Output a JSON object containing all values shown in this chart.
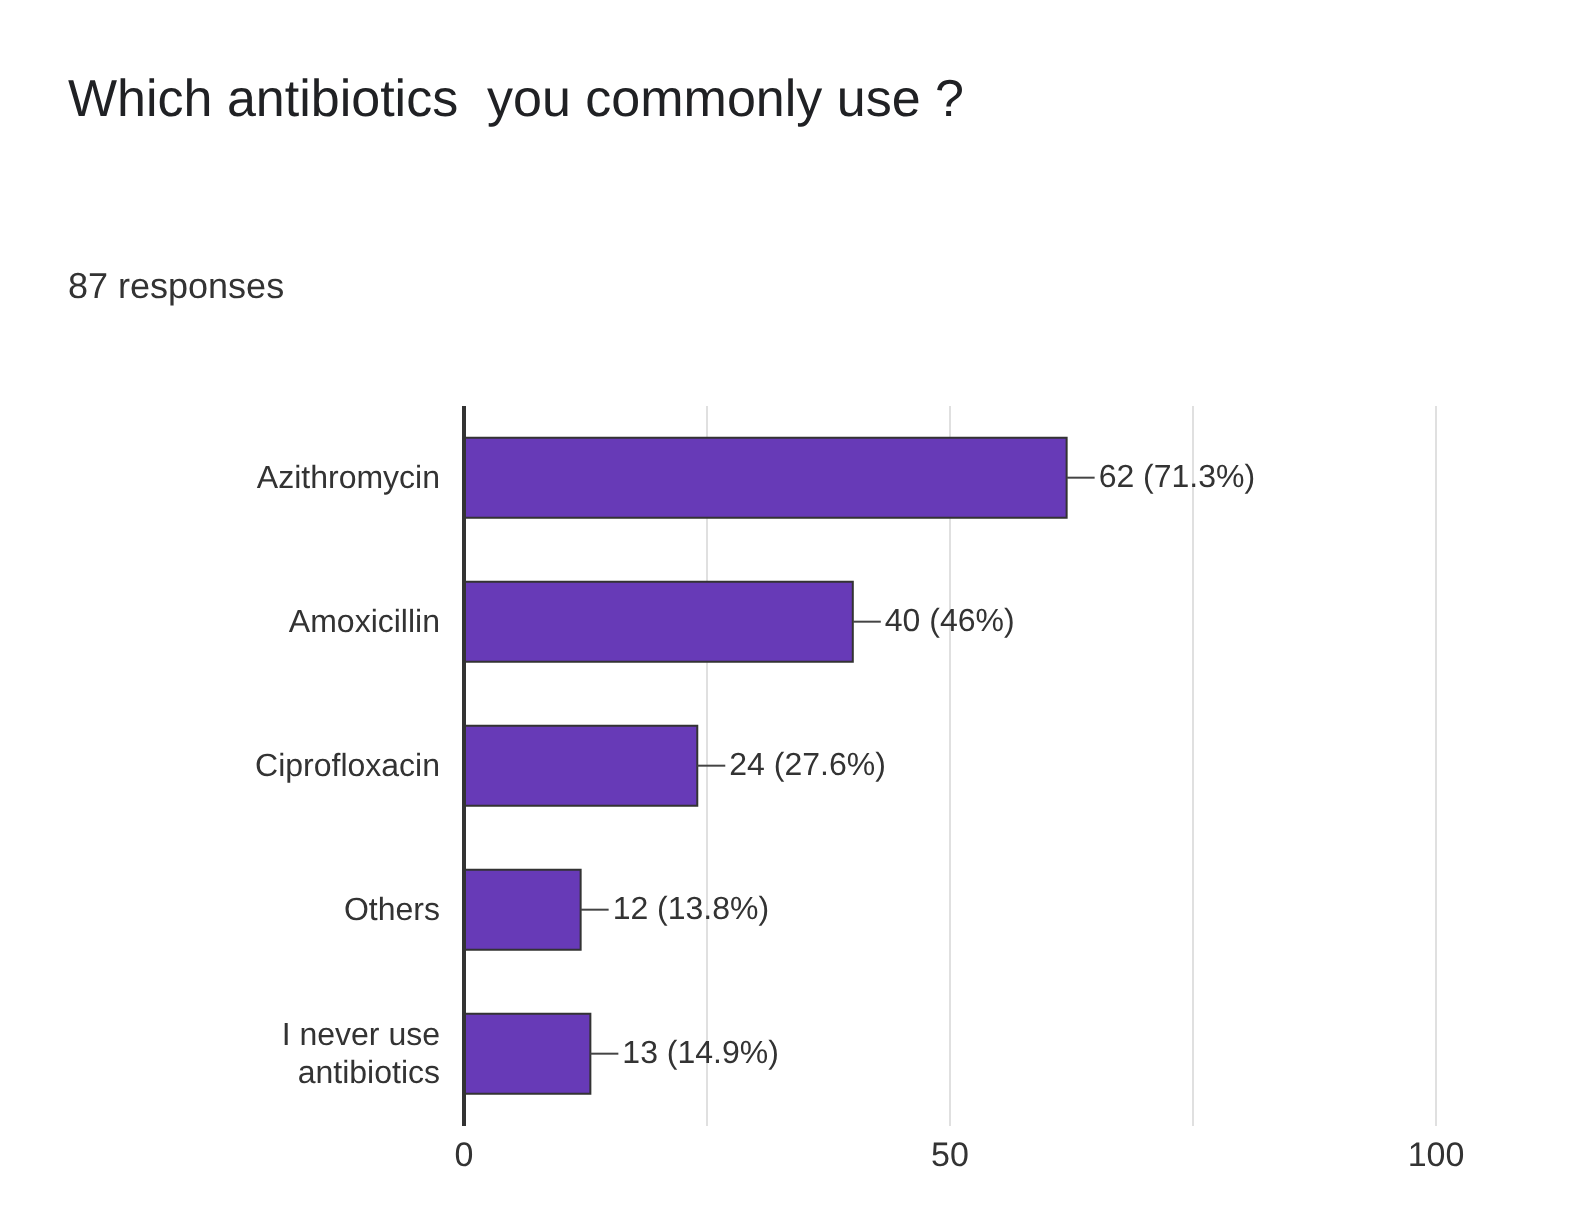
{
  "chart_data": {
    "type": "bar",
    "orientation": "horizontal",
    "title": "Which antibiotics  you commonly use ?",
    "subtitle": "87 responses",
    "categories": [
      "Azithromycin",
      "Amoxicillin",
      "Ciprofloxacin",
      "Others",
      "I never use antibiotics"
    ],
    "values": [
      62,
      40,
      24,
      12,
      13
    ],
    "value_labels": [
      "62 (71.3%)",
      "40 (46%)",
      "24 (27.6%)",
      "12 (13.8%)",
      "13 (14.9%)"
    ],
    "color": "#673ab7",
    "xlim": [
      0,
      100
    ],
    "xticks": [
      0,
      {
        "value": 25,
        "label": null
      },
      50,
      {
        "value": 75,
        "label": null
      },
      100
    ],
    "grid": "x"
  }
}
